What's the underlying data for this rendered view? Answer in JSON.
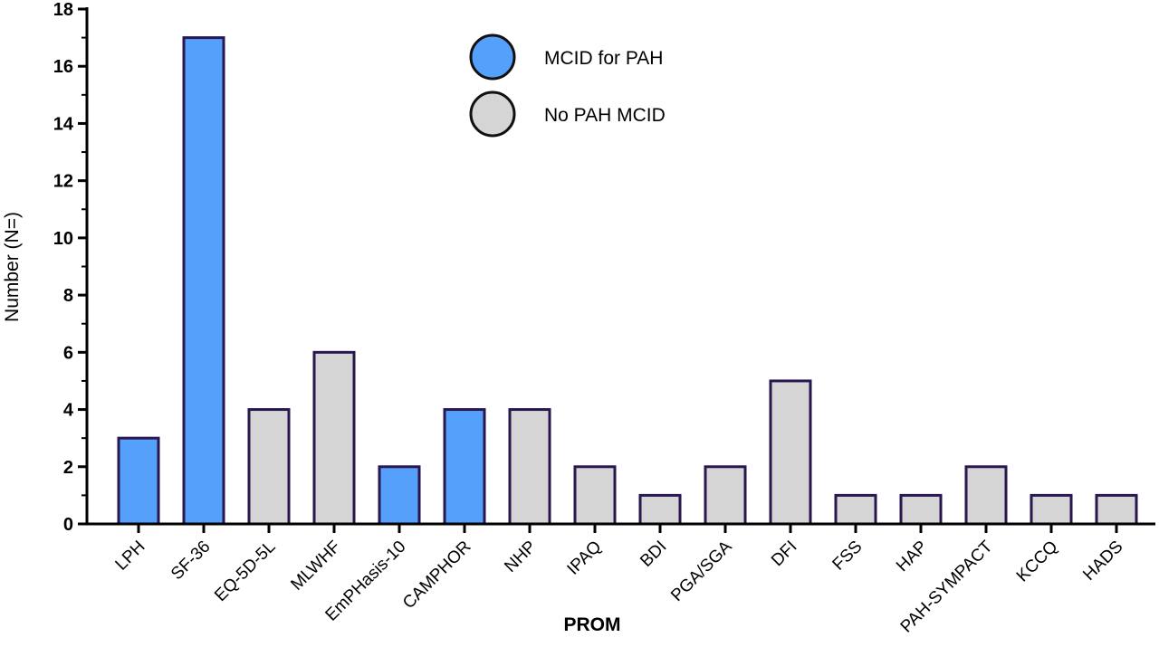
{
  "chart_data": {
    "type": "bar",
    "categories": [
      "LPH",
      "SF-36",
      "EQ-5D-5L",
      "MLWHF",
      "EmPHasis-10",
      "CAMPHOR",
      "NHP",
      "IPAQ",
      "BDI",
      "PGA/SGA",
      "DFI",
      "FSS",
      "HAP",
      "PAH-SYMPACT",
      "KCCQ",
      "HADS"
    ],
    "values": [
      3,
      17,
      4,
      6,
      2,
      4,
      4,
      2,
      1,
      2,
      5,
      1,
      1,
      2,
      1,
      1
    ],
    "groups": [
      "mcid",
      "mcid",
      "no",
      "no",
      "mcid",
      "mcid",
      "no",
      "no",
      "no",
      "no",
      "no",
      "no",
      "no",
      "no",
      "no",
      "no"
    ],
    "xlabel": "PROM",
    "ylabel": "Number (N=)",
    "ylim": [
      0,
      18
    ],
    "yticks": [
      0,
      2,
      4,
      6,
      8,
      10,
      12,
      14,
      16,
      18
    ],
    "legend": {
      "placement": "top-center",
      "entries": [
        {
          "key": "mcid",
          "label": "MCID for PAH",
          "color": "#55a0fb"
        },
        {
          "key": "no",
          "label": "No PAH MCID",
          "color": "#d5d5d5"
        }
      ]
    },
    "edge_color": "#2a1650",
    "grid": false
  }
}
